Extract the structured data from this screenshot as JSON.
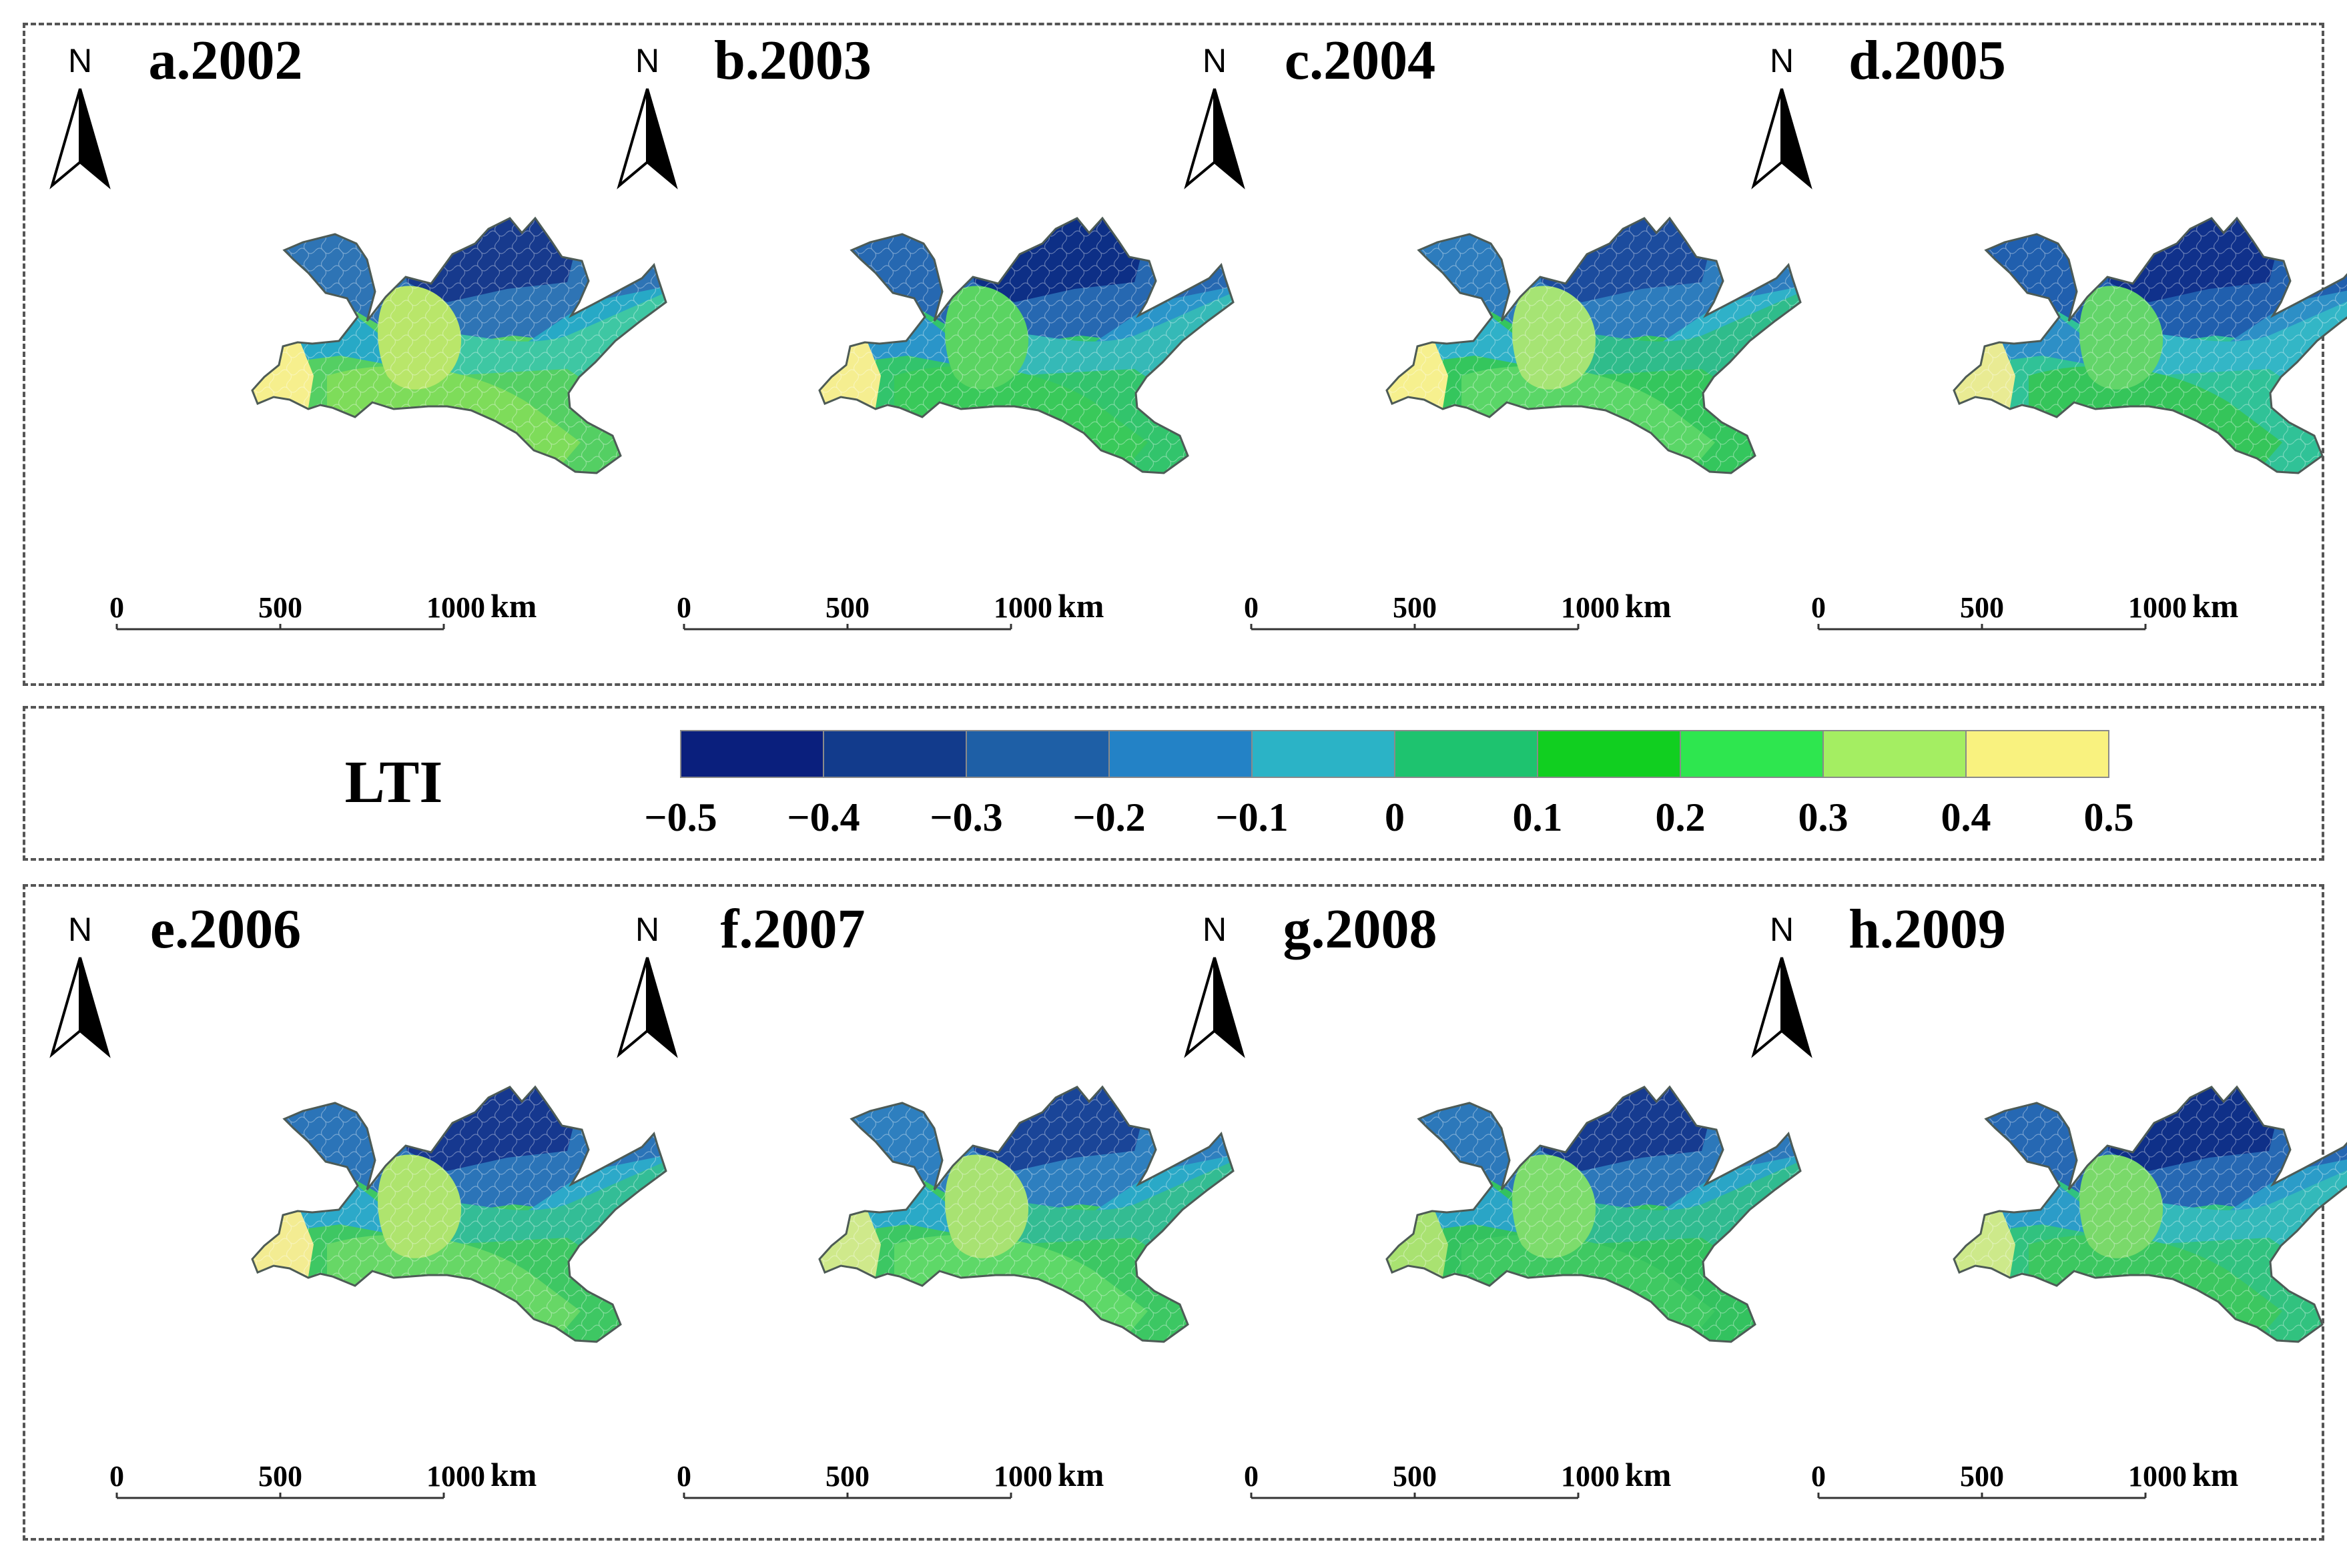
{
  "figure": {
    "panels": [
      {
        "label": "a.2002",
        "palette": [
          "#173a8d",
          "#2e74b5",
          "#27a9c6",
          "#3ec7a3",
          "#54cf63",
          "#7edc5a",
          "#b9e66a",
          "#f6ef8d"
        ]
      },
      {
        "label": "b.2003",
        "palette": [
          "#0d2f86",
          "#2668b1",
          "#2a95c9",
          "#35b9b7",
          "#32c46c",
          "#39c95a",
          "#5ad462",
          "#f5ee90"
        ]
      },
      {
        "label": "c.2004",
        "palette": [
          "#1c4c9e",
          "#2d7cbd",
          "#2fb1c8",
          "#2fbc8b",
          "#34c65d",
          "#5ad667",
          "#a6e474",
          "#f6f08e"
        ]
      },
      {
        "label": "d.2005",
        "palette": [
          "#10318b",
          "#205fae",
          "#2d8fc6",
          "#33b6c6",
          "#30c297",
          "#35c55a",
          "#63d56a",
          "#e9eb93"
        ]
      },
      {
        "label": "e.2006",
        "palette": [
          "#16388f",
          "#2b74b8",
          "#2ca9c9",
          "#33bd96",
          "#3ec763",
          "#67d766",
          "#aee46e",
          "#f3ec92"
        ]
      },
      {
        "label": "f.2007",
        "palette": [
          "#1a4598",
          "#2e7fbf",
          "#2aa9c7",
          "#33bc92",
          "#3cc763",
          "#5ed868",
          "#a8e272",
          "#cfe98b"
        ]
      },
      {
        "label": "g.2008",
        "palette": [
          "#163b90",
          "#2c78ba",
          "#2aa5c6",
          "#30bb90",
          "#33c25f",
          "#3fc962",
          "#7ddc6c",
          "#a9e271"
        ]
      },
      {
        "label": "h.2009",
        "palette": [
          "#0f3088",
          "#2668b3",
          "#2b9cc8",
          "#33b9ba",
          "#31c27f",
          "#3cc760",
          "#7ad96a",
          "#cde98a"
        ]
      }
    ],
    "north_label": "N",
    "scalebar": {
      "ticks": [
        "0",
        "500",
        "1000"
      ],
      "unit": "km"
    }
  },
  "legend": {
    "title": "LTI",
    "classes": [
      {
        "from": -0.5,
        "to": -0.4,
        "color": "#0a1f7d"
      },
      {
        "from": -0.4,
        "to": -0.3,
        "color": "#123b8c"
      },
      {
        "from": -0.3,
        "to": -0.2,
        "color": "#1e5fa6"
      },
      {
        "from": -0.2,
        "to": -0.1,
        "color": "#2382c6"
      },
      {
        "from": -0.1,
        "to": 0,
        "color": "#2bb3c6"
      },
      {
        "from": 0,
        "to": 0.1,
        "color": "#1ec36f"
      },
      {
        "from": 0.1,
        "to": 0.2,
        "color": "#11cf20"
      },
      {
        "from": 0.2,
        "to": 0.3,
        "color": "#2ee64f"
      },
      {
        "from": 0.3,
        "to": 0.4,
        "color": "#a4ee62"
      },
      {
        "from": 0.4,
        "to": 0.5,
        "color": "#f9f27f"
      }
    ],
    "tick_labels": [
      "−0.5",
      "−0.4",
      "−0.3",
      "−0.2",
      "−0.1",
      "0",
      "0.1",
      "0.2",
      "0.3",
      "0.4",
      "0.5"
    ]
  }
}
